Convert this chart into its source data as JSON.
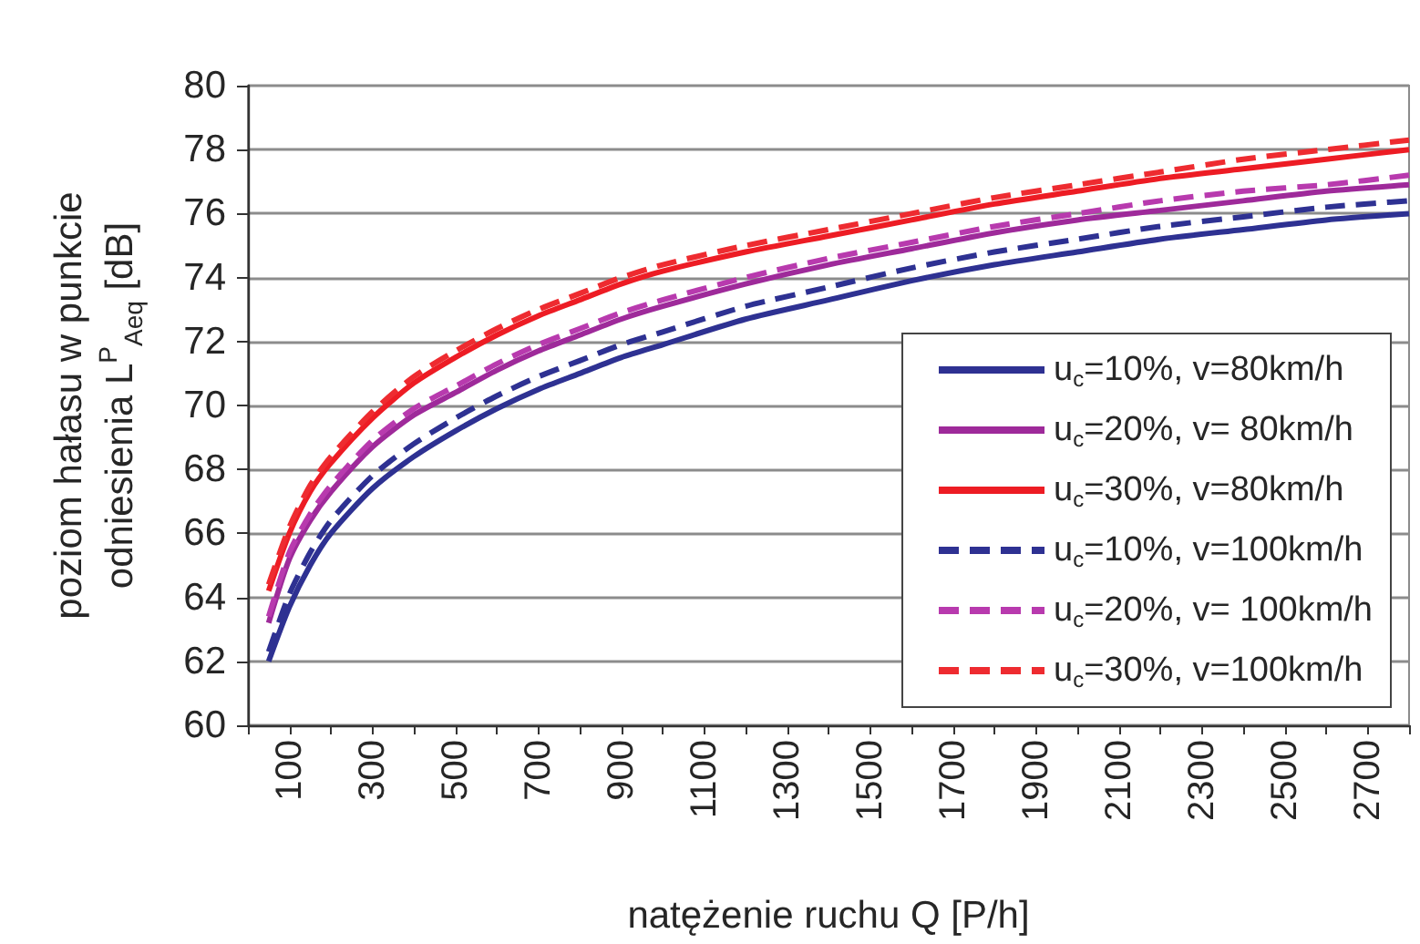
{
  "chart_data": {
    "type": "line",
    "xlabel": "natężenie ruchu Q [P/h]",
    "ylabel": "poziom hałasu w punkcie odniesienia L$^{P}$$_{Aeq}$ [dB]",
    "x": [
      50,
      100,
      150,
      200,
      300,
      400,
      500,
      600,
      700,
      800,
      900,
      1000,
      1200,
      1400,
      1600,
      1800,
      2000,
      2200,
      2400,
      2600,
      2800
    ],
    "xlim": [
      0,
      2800
    ],
    "xticks": [
      {
        "value": 0,
        "label": null
      },
      100,
      {
        "value": 200,
        "label": null
      },
      300,
      {
        "value": 400,
        "label": null
      },
      500,
      {
        "value": 600,
        "label": null
      },
      700,
      {
        "value": 800,
        "label": null
      },
      900,
      {
        "value": 1000,
        "label": null
      },
      1100,
      {
        "value": 1200,
        "label": null
      },
      1300,
      {
        "value": 1400,
        "label": null
      },
      1500,
      {
        "value": 1600,
        "label": null
      },
      1700,
      {
        "value": 1800,
        "label": null
      },
      1900,
      {
        "value": 2000,
        "label": null
      },
      2100,
      {
        "value": 2200,
        "label": null
      },
      2300,
      {
        "value": 2400,
        "label": null
      },
      2500,
      {
        "value": 2600,
        "label": null
      },
      2700,
      {
        "value": 2800,
        "label": null
      }
    ],
    "ylim": [
      60,
      80
    ],
    "yticks": [
      60,
      62,
      64,
      66,
      68,
      70,
      72,
      74,
      76,
      78,
      80
    ],
    "grid": "y",
    "legend": "bottom right",
    "marker": "none",
    "series": [
      {
        "name": "u$_{c}$=10%, v=80km/h",
        "color": "#2e3192",
        "line_style": "solid",
        "values": [
          62.0,
          63.7,
          65.0,
          66.0,
          67.4,
          68.4,
          69.2,
          69.9,
          70.5,
          71.0,
          71.5,
          71.9,
          72.7,
          73.3,
          73.9,
          74.4,
          74.8,
          75.2,
          75.5,
          75.8,
          76.0
        ]
      },
      {
        "name": "u$_{c}$=20%, v= 80km/h",
        "color": "#9e2a9a",
        "line_style": "solid",
        "values": [
          63.2,
          65.2,
          66.4,
          67.3,
          68.7,
          69.7,
          70.4,
          71.1,
          71.7,
          72.2,
          72.7,
          73.1,
          73.8,
          74.4,
          74.9,
          75.4,
          75.8,
          76.1,
          76.4,
          76.7,
          76.9
        ]
      },
      {
        "name": "u$_{c}$=30%, v=80km/h",
        "color": "#ed1c24",
        "line_style": "solid",
        "values": [
          64.2,
          66.0,
          67.3,
          68.2,
          69.6,
          70.7,
          71.5,
          72.2,
          72.8,
          73.3,
          73.8,
          74.2,
          74.8,
          75.3,
          75.8,
          76.3,
          76.7,
          77.1,
          77.4,
          77.7,
          78.0
        ]
      },
      {
        "name": "u$_{c}$=10%, v=100km/h",
        "color": "#2e3192",
        "line_style": "dashed",
        "values": [
          62.3,
          64.1,
          65.4,
          66.4,
          67.8,
          68.8,
          69.6,
          70.3,
          70.9,
          71.4,
          71.9,
          72.3,
          73.1,
          73.7,
          74.3,
          74.8,
          75.2,
          75.6,
          75.9,
          76.2,
          76.4
        ]
      },
      {
        "name": "u$_{c}$=20%, v= 100km/h",
        "color": "#b83aae",
        "line_style": "dashed",
        "values": [
          63.4,
          65.4,
          66.6,
          67.5,
          68.9,
          69.9,
          70.6,
          71.3,
          71.9,
          72.4,
          72.9,
          73.3,
          74.0,
          74.6,
          75.1,
          75.6,
          76.0,
          76.4,
          76.7,
          76.9,
          77.2
        ]
      },
      {
        "name": "u$_{c}$=30%, v=100km/h",
        "color": "#ee2b30",
        "line_style": "dashed",
        "values": [
          64.4,
          66.2,
          67.5,
          68.4,
          69.8,
          70.9,
          71.7,
          72.4,
          73.0,
          73.5,
          74.0,
          74.4,
          75.0,
          75.5,
          76.0,
          76.5,
          76.9,
          77.3,
          77.7,
          78.0,
          78.3
        ]
      }
    ]
  }
}
